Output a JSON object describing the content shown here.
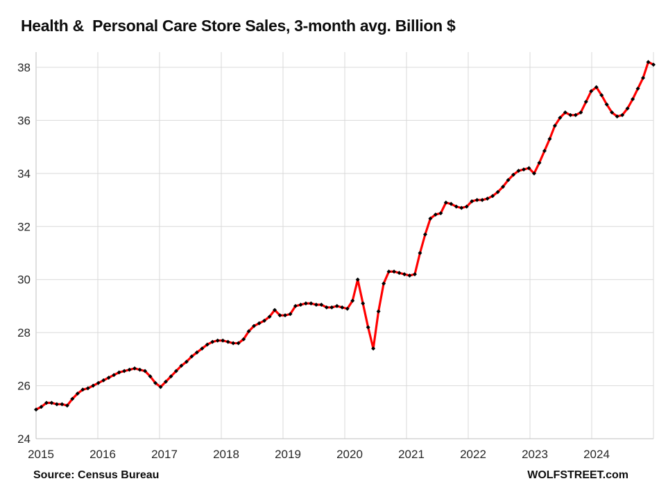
{
  "title": "Health &  Personal Care Store Sales, 3-month avg. Billion $",
  "footer": {
    "source": "Source: Census Bureau",
    "brand": "WOLFSTREET.com"
  },
  "colors": {
    "line": "#ff0000",
    "marker": "#000000",
    "gridline": "#d9d9d9",
    "axis": "#bfbfbf",
    "text": "#262626"
  },
  "chart_data": {
    "type": "line",
    "title": "Health & Personal Care Store Sales, 3-month avg. Billion $",
    "xlabel": "",
    "ylabel": "Billion $",
    "frequency": "monthly",
    "x_start": "2015-01",
    "x_end": "2024-12",
    "x_tick_labels": [
      "2015",
      "2016",
      "2017",
      "2018",
      "2019",
      "2020",
      "2021",
      "2022",
      "2023",
      "2024"
    ],
    "y_ticks": [
      24,
      26,
      28,
      30,
      32,
      34,
      36,
      38
    ],
    "ylim": [
      24,
      38.6
    ],
    "grid": true,
    "legend": "none",
    "series": [
      {
        "name": "Health & Personal Care Store Sales, 3-month avg",
        "color": "#ff0000",
        "marker": "diamond",
        "marker_color": "#000000",
        "values": [
          25.1,
          25.2,
          25.35,
          25.35,
          25.3,
          25.3,
          25.25,
          25.5,
          25.7,
          25.85,
          25.9,
          26.0,
          26.1,
          26.2,
          26.3,
          26.4,
          26.5,
          26.55,
          26.6,
          26.65,
          26.6,
          26.55,
          26.35,
          26.1,
          25.95,
          26.15,
          26.35,
          26.55,
          26.75,
          26.9,
          27.1,
          27.25,
          27.4,
          27.55,
          27.65,
          27.7,
          27.7,
          27.65,
          27.6,
          27.6,
          27.75,
          28.05,
          28.25,
          28.35,
          28.45,
          28.6,
          28.85,
          28.65,
          28.65,
          28.7,
          29.0,
          29.05,
          29.1,
          29.1,
          29.05,
          29.05,
          28.95,
          28.95,
          29.0,
          28.95,
          28.9,
          29.2,
          30.0,
          29.1,
          28.2,
          27.4,
          28.8,
          29.85,
          30.3,
          30.3,
          30.25,
          30.2,
          30.15,
          30.2,
          31.0,
          31.7,
          32.3,
          32.45,
          32.5,
          32.9,
          32.85,
          32.75,
          32.7,
          32.75,
          32.95,
          33.0,
          33.0,
          33.05,
          33.15,
          33.3,
          33.5,
          33.75,
          33.95,
          34.1,
          34.15,
          34.2,
          34.0,
          34.4,
          34.85,
          35.3,
          35.8,
          36.1,
          36.3,
          36.2,
          36.2,
          36.3,
          36.7,
          37.1,
          37.25,
          36.95,
          36.6,
          36.3,
          36.15,
          36.2,
          36.45,
          36.8,
          37.2,
          37.6,
          38.2,
          38.1
        ]
      }
    ]
  }
}
